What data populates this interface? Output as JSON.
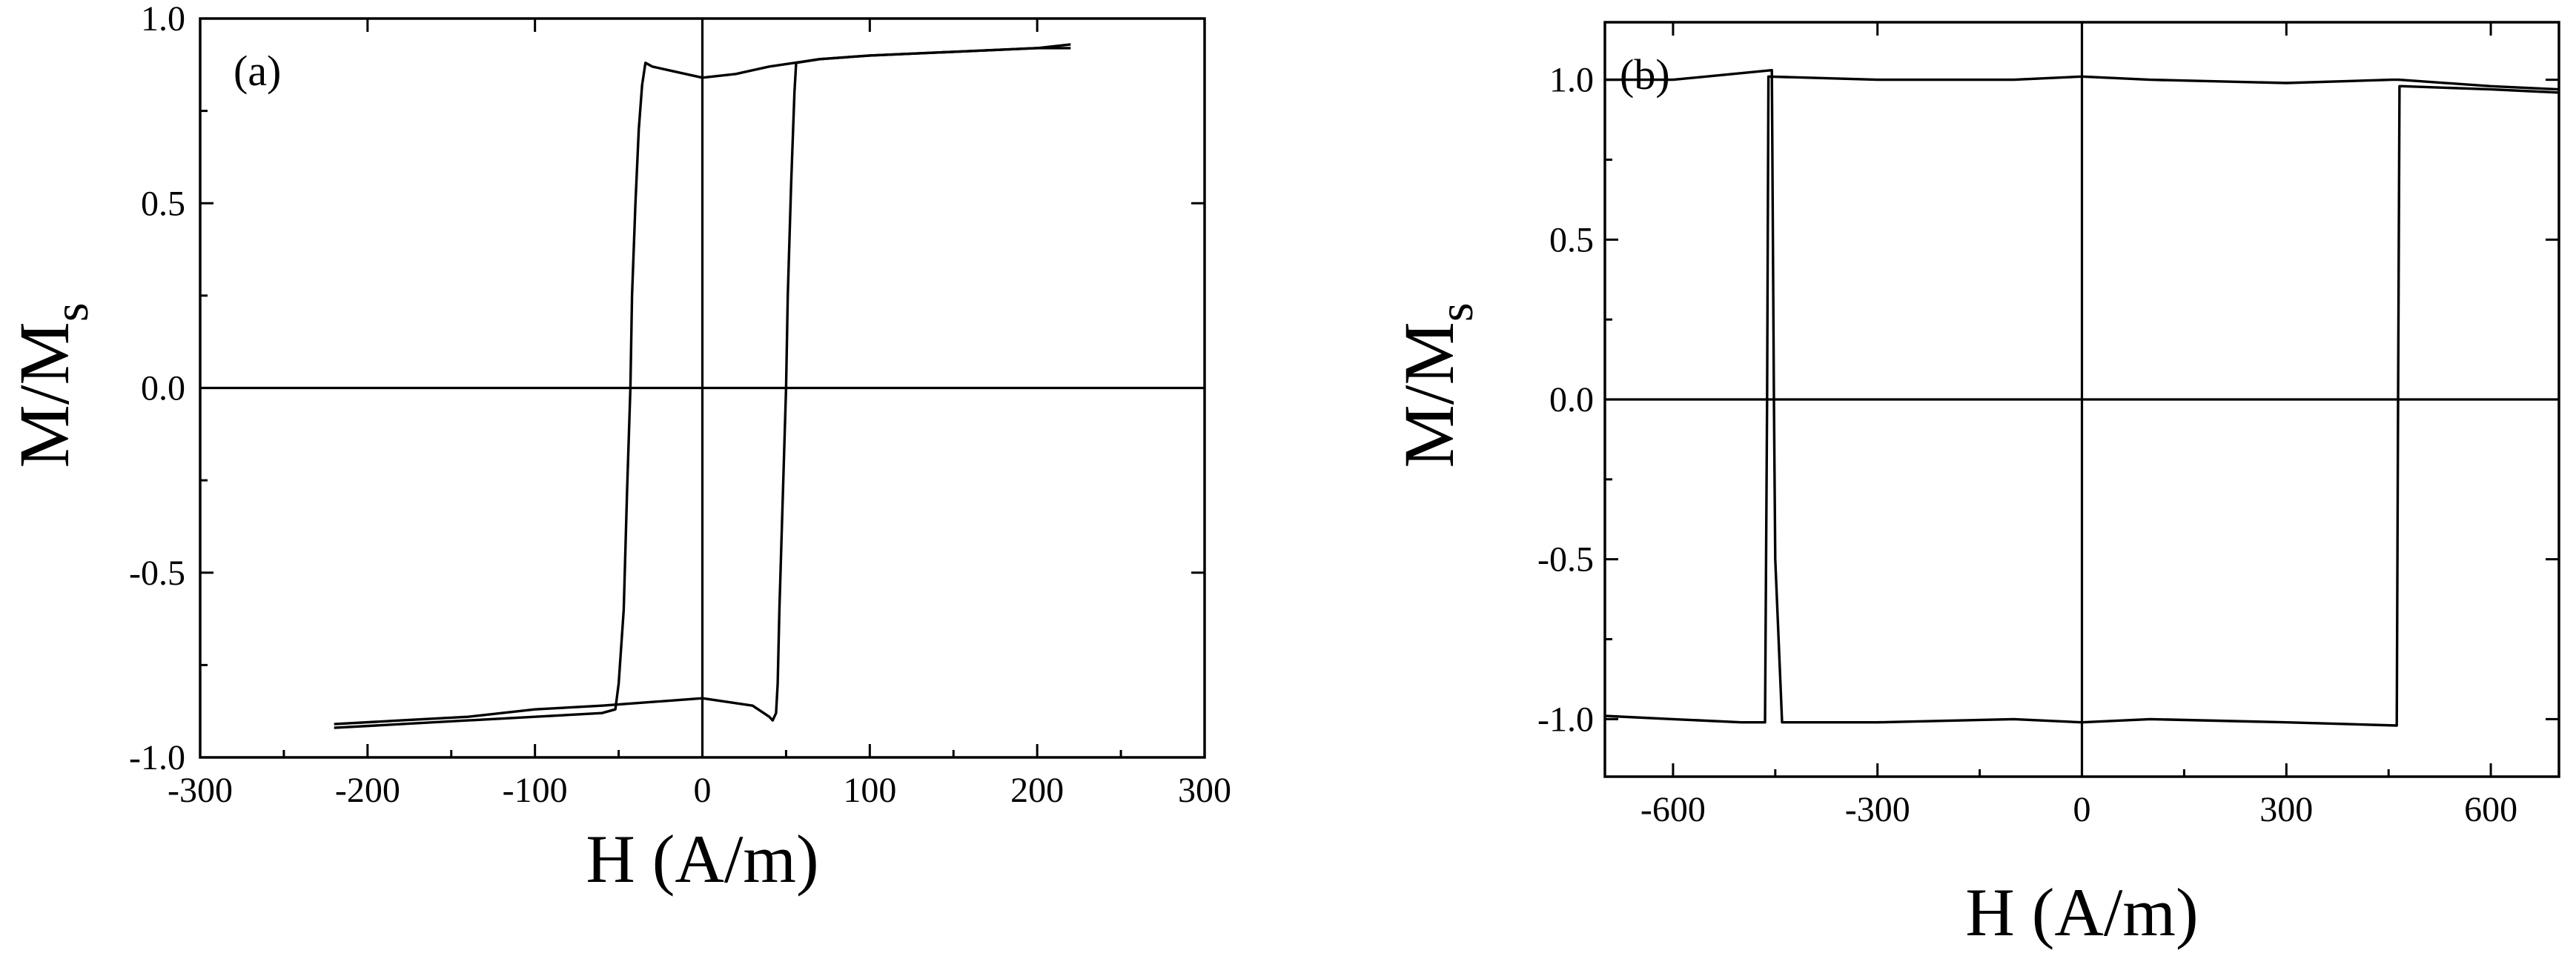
{
  "chart_data": [
    {
      "type": "line",
      "panel_label": "(a)",
      "xlabel": "H (A/m)",
      "ylabel_main": "M/M",
      "ylabel_sub": "s",
      "xlim": [
        -300,
        300
      ],
      "ylim": [
        -1.0,
        1.0
      ],
      "x_ticks": [
        -300,
        -200,
        -100,
        0,
        100,
        200,
        300
      ],
      "x_tick_labels": [
        "-300",
        "-200",
        "-100",
        "0",
        "100",
        "200",
        "300"
      ],
      "y_ticks": [
        -1.0,
        -0.5,
        0.0,
        0.5,
        1.0
      ],
      "y_tick_labels": [
        "-1.0",
        "-0.5",
        "0.0",
        "0.5",
        "1.0"
      ],
      "zero_lines": true,
      "grid": false,
      "legend": "none",
      "series": [
        {
          "x": [
            -220,
            -180,
            -140,
            -100,
            -60,
            -52,
            -50,
            -47,
            -45,
            -43,
            -42,
            -40,
            -38,
            -36,
            -34,
            -30,
            -20,
            0,
            20,
            40,
            55,
            70,
            100,
            150,
            200,
            220
          ],
          "y": [
            -0.92,
            -0.91,
            -0.9,
            -0.89,
            -0.88,
            -0.87,
            -0.8,
            -0.6,
            -0.28,
            0.0,
            0.25,
            0.5,
            0.7,
            0.82,
            0.88,
            0.87,
            0.86,
            0.84,
            0.85,
            0.87,
            0.88,
            0.89,
            0.9,
            0.91,
            0.92,
            0.92
          ]
        },
        {
          "x": [
            220,
            200,
            150,
            100,
            70,
            56,
            55,
            53,
            51,
            50,
            48,
            46,
            45,
            44,
            42,
            40,
            30,
            0,
            -30,
            -60,
            -100,
            -140,
            -180,
            -220
          ],
          "y": [
            0.93,
            0.92,
            0.91,
            0.9,
            0.89,
            0.88,
            0.8,
            0.55,
            0.25,
            0.0,
            -0.3,
            -0.6,
            -0.8,
            -0.88,
            -0.9,
            -0.89,
            -0.86,
            -0.84,
            -0.85,
            -0.86,
            -0.87,
            -0.89,
            -0.9,
            -0.91
          ]
        }
      ]
    },
    {
      "type": "line",
      "panel_label": "(b)",
      "xlabel": "H (A/m)",
      "ylabel_main": "M/M",
      "ylabel_sub": "s",
      "xlim": [
        -700,
        700
      ],
      "ylim": [
        -1.18,
        1.18
      ],
      "x_ticks": [
        -600,
        -300,
        0,
        300,
        600
      ],
      "x_tick_labels": [
        "-600",
        "-300",
        "0",
        "300",
        "600"
      ],
      "y_ticks": [
        -1.0,
        -0.5,
        0.0,
        0.5,
        1.0
      ],
      "y_tick_labels": [
        "-1.0",
        "-0.5",
        "0.0",
        "0.5",
        "1.0"
      ],
      "zero_lines": true,
      "grid": false,
      "legend": "none",
      "series": [
        {
          "x": [
            -700,
            -600,
            -500,
            -465,
            -462,
            -460,
            -300,
            -100,
            0,
            100,
            300,
            455,
            460,
            462,
            465,
            600,
            700
          ],
          "y": [
            -0.99,
            -1.0,
            -1.01,
            -1.01,
            0.0,
            1.01,
            1.0,
            1.0,
            1.01,
            1.0,
            0.99,
            1.0,
            1.0,
            1.0,
            1.0,
            0.98,
            0.97
          ]
        },
        {
          "x": [
            700,
            600,
            470,
            466,
            464,
            462,
            300,
            100,
            0,
            -100,
            -300,
            -440,
            -450,
            -452,
            -455,
            -600,
            -700
          ],
          "y": [
            0.96,
            0.97,
            0.98,
            0.98,
            0.0,
            -1.02,
            -1.01,
            -1.0,
            -1.01,
            -1.0,
            -1.01,
            -1.01,
            -0.5,
            0.0,
            1.03,
            1.0,
            1.0
          ]
        }
      ]
    }
  ]
}
